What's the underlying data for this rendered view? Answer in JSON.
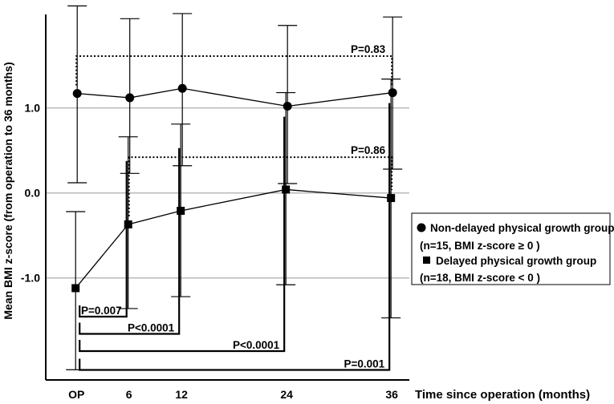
{
  "chart_data": {
    "type": "line",
    "title": "",
    "xlabel": "Time since operation (months)",
    "ylabel": "Mean BMI z-score (from operation to 36 months)",
    "categories": [
      "OP",
      "6",
      "12",
      "24",
      "36"
    ],
    "x_values": [
      0,
      6,
      12,
      24,
      36
    ],
    "xlim": [
      -3.5,
      38
    ],
    "ylim": [
      -2.2,
      2.1
    ],
    "yticks": [
      {
        "value": 1.0,
        "label": "1.0"
      },
      {
        "value": 0.0,
        "label": "0.0"
      },
      {
        "value": -1.0,
        "label": "-1.0"
      }
    ],
    "grid": "horizontal at y ticks",
    "series": [
      {
        "name": "Non-delayed physical growth group (n=15, BMI z-score ≥ 0 )",
        "marker": "circle",
        "values": [
          1.17,
          1.12,
          1.23,
          1.02,
          1.18
        ],
        "err_low": [
          0.12,
          0.23,
          0.32,
          0.11,
          0.28
        ],
        "err_high": [
          2.2,
          2.05,
          2.11,
          1.97,
          2.07
        ]
      },
      {
        "name": "Delayed physical growth group (n=18, BMI z-score < 0 )",
        "marker": "square",
        "values": [
          -1.12,
          -0.37,
          -0.21,
          0.04,
          -0.06
        ],
        "err_low": [
          -2.08,
          -1.36,
          -1.22,
          -1.08,
          -1.47
        ],
        "err_high": [
          -0.22,
          0.66,
          0.81,
          1.18,
          1.34
        ]
      }
    ],
    "legend": {
      "placement": "right",
      "lines": [
        "Non-delayed physical growth group",
        "(n=15, BMI z-score ≥ 0 )",
        "Delayed physical growth group",
        "(n=18, BMI z-score < 0 )"
      ]
    },
    "annotations": [
      {
        "label": "P=0.83",
        "from": "OP",
        "to": "36",
        "group": "non-delayed",
        "style": "dotted"
      },
      {
        "label": "P=0.86",
        "from": "6",
        "to": "36",
        "group": "delayed",
        "style": "dotted"
      },
      {
        "label": "P=0.007",
        "from": "OP",
        "to": "6",
        "group": "delayed",
        "style": "solid"
      },
      {
        "label": "P<0.0001",
        "from": "OP",
        "to": "12",
        "group": "delayed",
        "style": "solid"
      },
      {
        "label": "P<0.0001",
        "from": "OP",
        "to": "24",
        "group": "delayed",
        "style": "solid"
      },
      {
        "label": "P=0.001",
        "from": "OP",
        "to": "36",
        "group": "delayed",
        "style": "solid"
      }
    ]
  }
}
